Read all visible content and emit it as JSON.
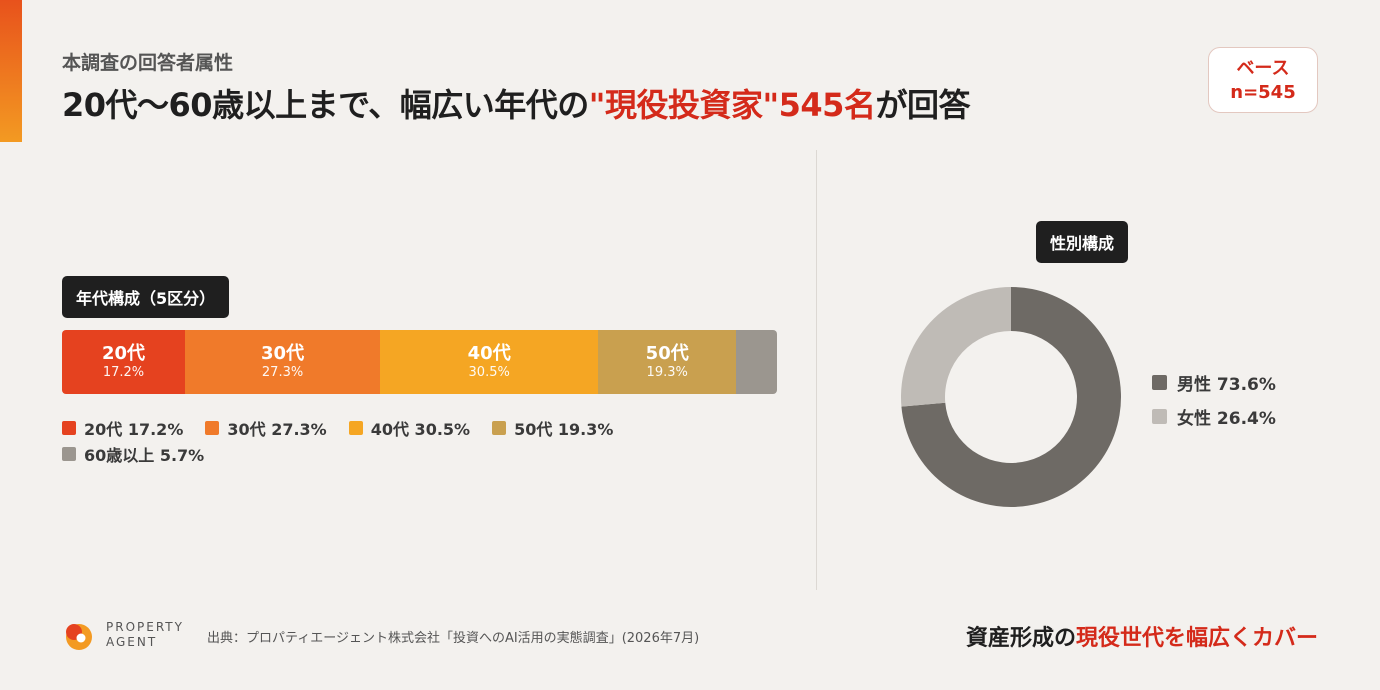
{
  "header": {
    "subtitle": "本調査の回答者属性",
    "title_prefix": "20代〜60歳以上まで、幅広い年代の",
    "title_highlight": "\"現役投資家\"545名",
    "title_suffix": "が回答"
  },
  "base_badge": {
    "line1": "ベース",
    "line2": "n=545"
  },
  "chart_data": [
    {
      "type": "bar",
      "stacked": true,
      "orientation": "horizontal",
      "title": "年代構成（5区分）",
      "categories": [
        "20代",
        "30代",
        "40代",
        "50代",
        "60歳以上"
      ],
      "values": [
        17.2,
        27.3,
        30.5,
        19.3,
        5.7
      ],
      "unit": "%",
      "colors": [
        "#e5421f",
        "#f07a2a",
        "#f5a623",
        "#c9a04f",
        "#9b968f"
      ],
      "segment_labels_shown": [
        true,
        true,
        true,
        true,
        false
      ],
      "legend": [
        {
          "label": "20代 17.2%",
          "color": "#e5421f"
        },
        {
          "label": "30代 27.3%",
          "color": "#f07a2a"
        },
        {
          "label": "40代 30.5%",
          "color": "#f5a623"
        },
        {
          "label": "50代 19.3%",
          "color": "#c9a04f"
        },
        {
          "label": "60歳以上 5.7%",
          "color": "#9b968f"
        }
      ]
    },
    {
      "type": "pie",
      "donut": true,
      "title": "性別構成",
      "categories": [
        "男性",
        "女性"
      ],
      "values": [
        73.6,
        26.4
      ],
      "unit": "%",
      "colors": [
        "#6e6a65",
        "#bfbbb6"
      ],
      "legend": [
        {
          "label": "男性 73.6%",
          "color": "#6e6a65"
        },
        {
          "label": "女性 26.4%",
          "color": "#bfbbb6"
        }
      ]
    }
  ],
  "footer": {
    "logo_line1": "PROPERTY",
    "logo_line2": "AGENT",
    "source": "出典：プロパティエージェント株式会社「投資へのAI活用の実態調査」(2026年7月)",
    "tagline_prefix": "資産形成の",
    "tagline_highlight": "現役世代を幅広くカバー"
  }
}
